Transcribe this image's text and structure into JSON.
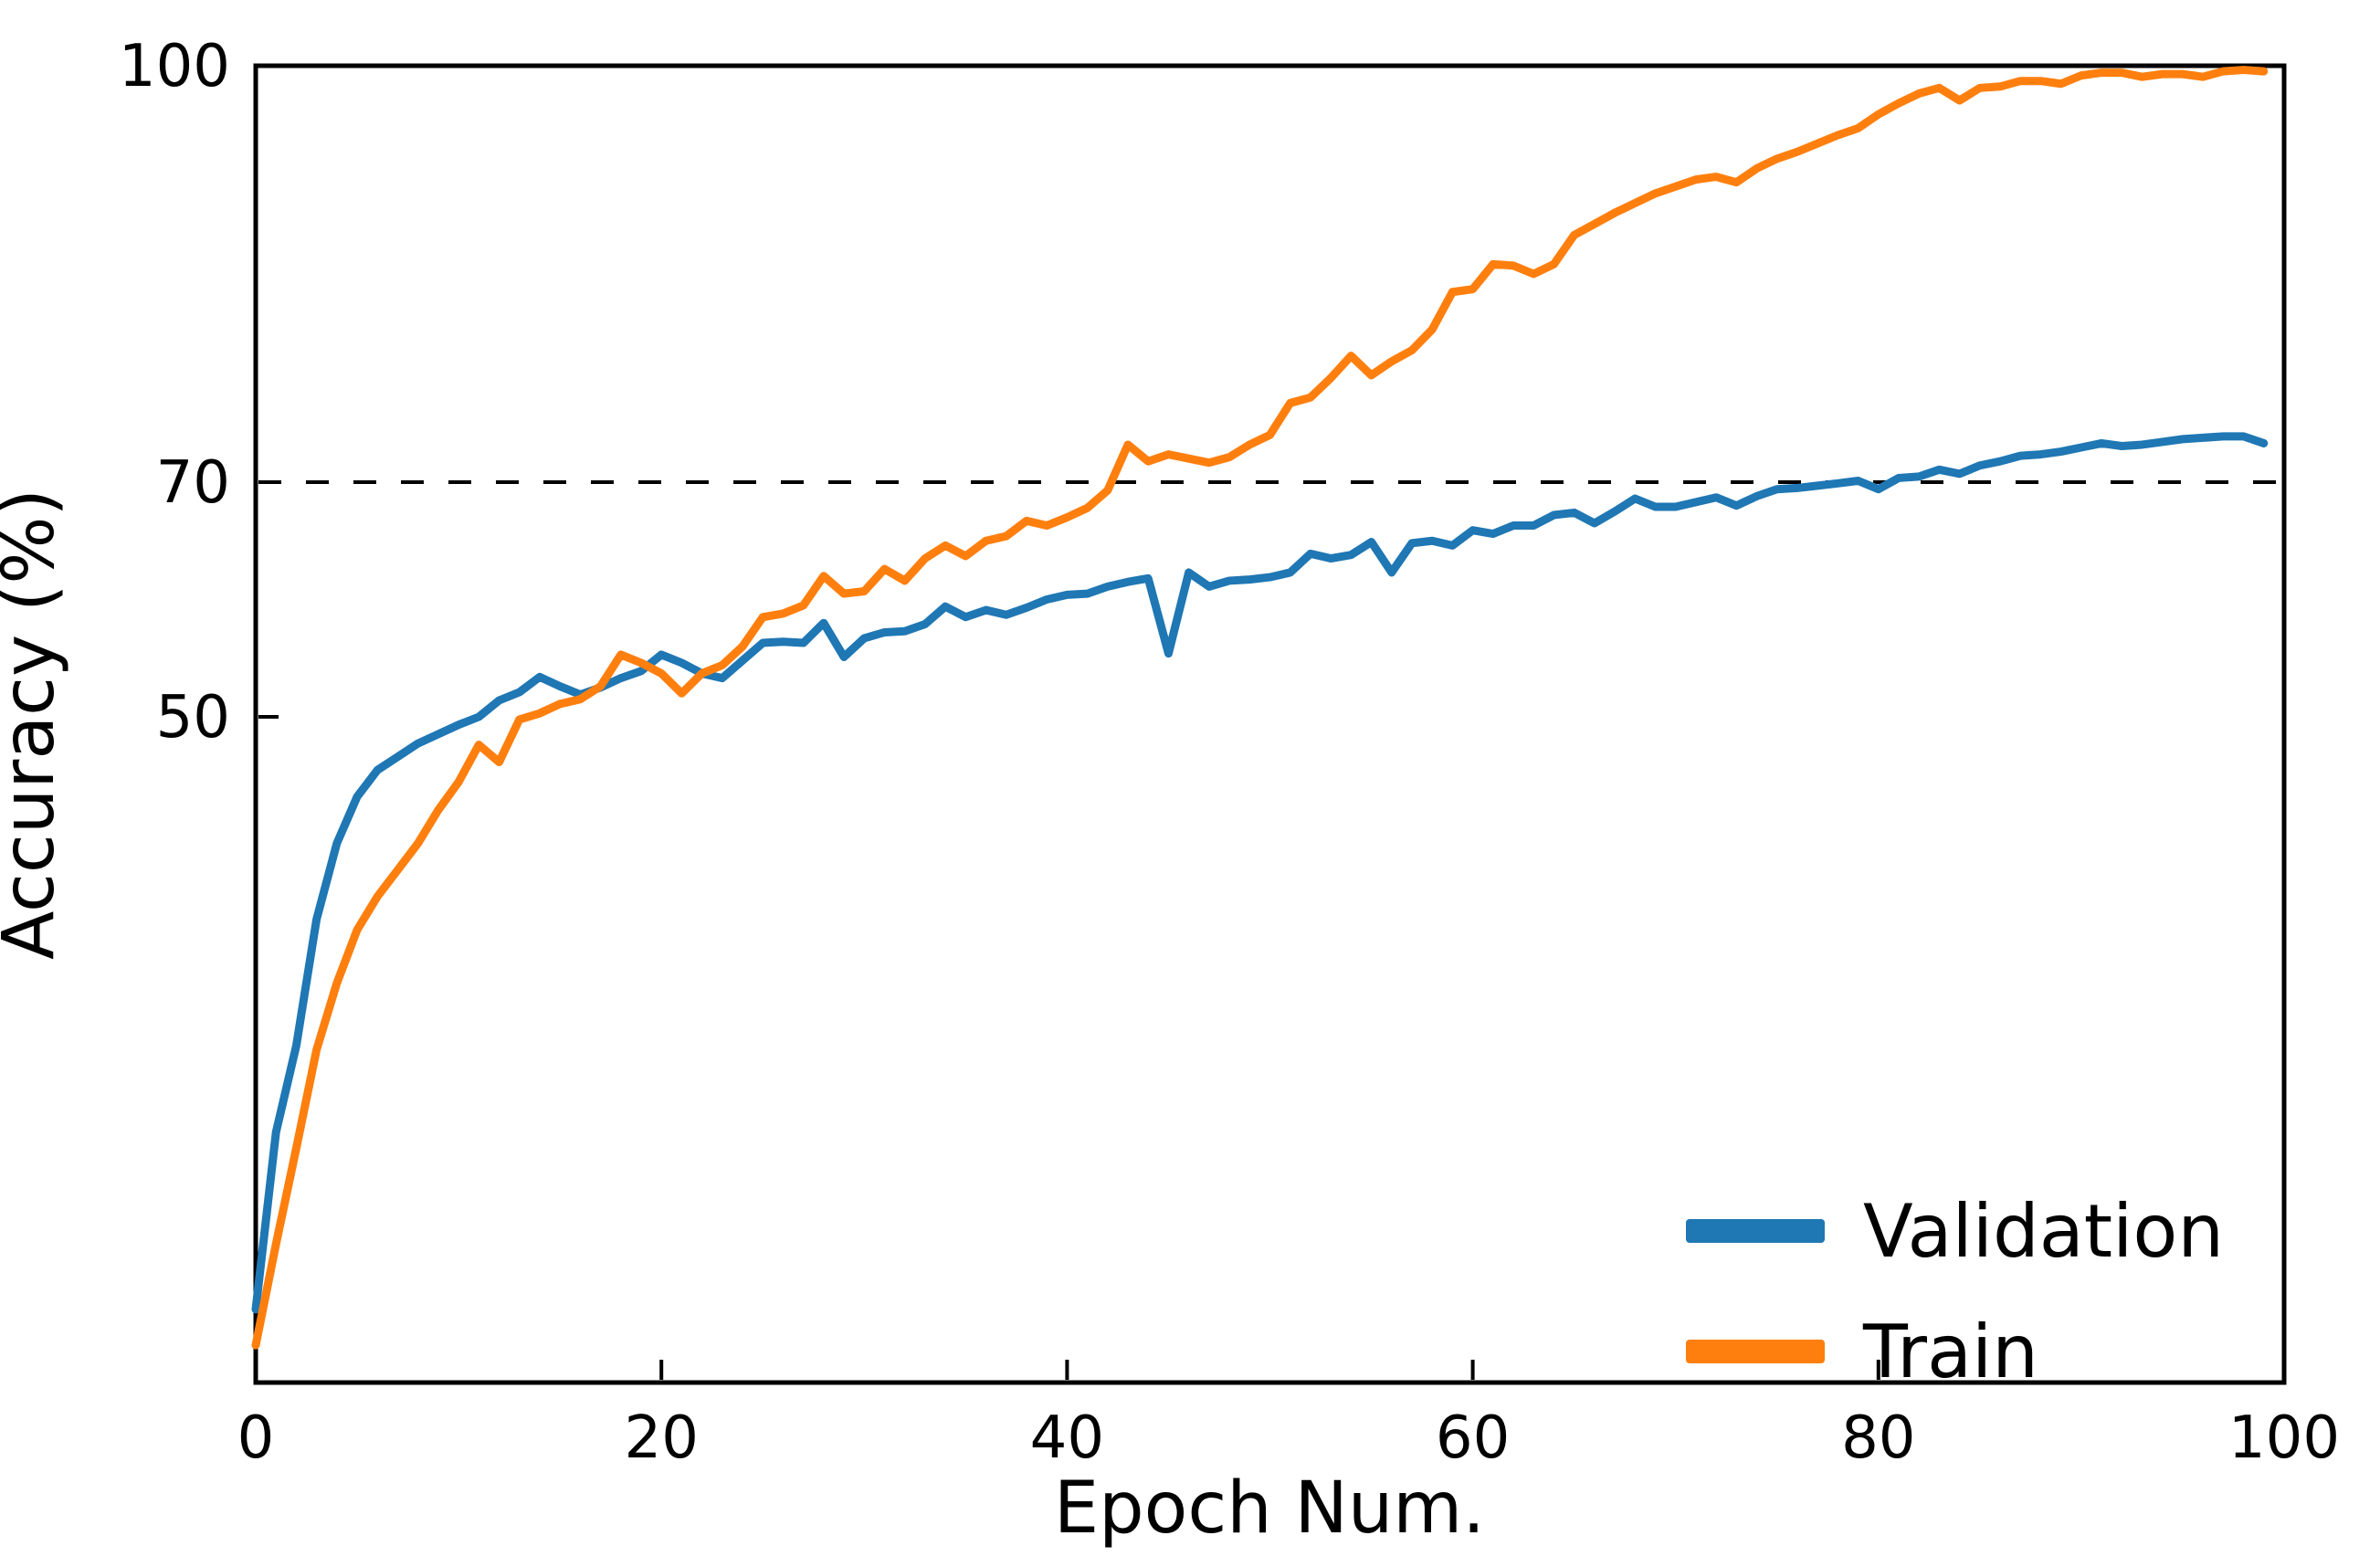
{
  "figure": {
    "y_axis": {
      "label": "Accuracy (%)",
      "tick_labels": [
        "50",
        "70",
        "100"
      ]
    },
    "x_axis": {
      "label": "Epoch Num.",
      "tick_labels": [
        "0",
        "20",
        "40",
        "60",
        "80",
        "100"
      ]
    },
    "legend": [
      {
        "label": "Validation",
        "color": "#1f77b4"
      },
      {
        "label": "Train",
        "color": "#ff7f0e"
      }
    ],
    "reference_line": {
      "value": 70,
      "style": "dashed",
      "color": "#000000"
    }
  },
  "chart_data": {
    "type": "line",
    "title": "",
    "xlabel": "Epoch Num.",
    "ylabel": "Accuracy (%)",
    "xlim": [
      0,
      100
    ],
    "xticks": [
      0,
      20,
      40,
      60,
      80,
      100
    ],
    "yticks": [
      50,
      70,
      100
    ],
    "grid": false,
    "legend_position": "lower right",
    "reference_line_y": 70,
    "x": [
      0,
      1,
      2,
      3,
      4,
      5,
      6,
      7,
      8,
      9,
      10,
      11,
      12,
      13,
      14,
      15,
      16,
      17,
      18,
      19,
      20,
      21,
      22,
      23,
      24,
      25,
      26,
      27,
      28,
      29,
      30,
      31,
      32,
      33,
      34,
      35,
      36,
      37,
      38,
      39,
      40,
      41,
      42,
      43,
      44,
      45,
      46,
      47,
      48,
      49,
      50,
      51,
      52,
      53,
      54,
      55,
      56,
      57,
      58,
      59,
      60,
      61,
      62,
      63,
      64,
      65,
      66,
      67,
      68,
      69,
      70,
      71,
      72,
      73,
      74,
      75,
      76,
      77,
      78,
      79,
      80,
      81,
      82,
      83,
      84,
      85,
      86,
      87,
      88,
      89,
      90,
      91,
      92,
      93,
      94,
      95,
      96,
      97,
      98,
      99
    ],
    "series": [
      {
        "name": "Validation",
        "color": "#1f77b4",
        "values": [
          5.5,
          18.8,
          25.3,
          34.8,
          40.5,
          44.0,
          46.0,
          47.0,
          48.0,
          48.7,
          49.4,
          50.0,
          51.4,
          52.1,
          53.4,
          52.6,
          51.9,
          52.5,
          53.3,
          53.9,
          55.3,
          54.6,
          53.7,
          53.3,
          54.8,
          56.3,
          56.4,
          56.3,
          58.0,
          55.1,
          56.7,
          57.2,
          57.3,
          57.9,
          59.4,
          58.5,
          59.1,
          58.7,
          59.3,
          60.0,
          60.4,
          60.5,
          61.1,
          61.5,
          61.8,
          55.4,
          62.3,
          61.1,
          61.6,
          61.7,
          61.9,
          62.3,
          63.9,
          63.5,
          63.8,
          64.9,
          62.3,
          64.8,
          65.0,
          64.6,
          65.9,
          65.6,
          66.3,
          66.3,
          67.2,
          67.4,
          66.5,
          67.5,
          68.6,
          67.9,
          67.9,
          68.3,
          68.7,
          68.0,
          68.8,
          69.4,
          69.5,
          69.7,
          69.9,
          70.1,
          69.4,
          70.3,
          70.4,
          70.9,
          70.6,
          71.2,
          71.5,
          71.9,
          72.0,
          72.2,
          72.5,
          72.8,
          72.6,
          72.7,
          72.9,
          73.1,
          73.2,
          73.3,
          73.3,
          72.8
        ]
      },
      {
        "name": "Train",
        "color": "#ff7f0e",
        "values": [
          2.8,
          10.4,
          17.6,
          25.0,
          30.0,
          34.0,
          36.5,
          38.5,
          40.5,
          43.0,
          45.1,
          47.9,
          46.6,
          49.8,
          50.3,
          51.1,
          51.5,
          52.6,
          55.3,
          54.6,
          53.7,
          52.0,
          53.7,
          54.4,
          56.0,
          58.5,
          58.8,
          59.5,
          62.0,
          60.5,
          60.7,
          62.6,
          61.6,
          63.5,
          64.6,
          63.7,
          65.0,
          65.4,
          66.7,
          66.3,
          67.0,
          67.8,
          69.3,
          72.7,
          71.5,
          72.0,
          71.7,
          71.4,
          71.8,
          72.7,
          73.4,
          75.7,
          76.1,
          77.5,
          79.1,
          77.7,
          78.7,
          79.5,
          81.0,
          83.7,
          83.9,
          85.7,
          85.6,
          85.0,
          85.7,
          87.8,
          88.6,
          89.4,
          90.1,
          90.8,
          91.3,
          91.8,
          92.0,
          91.6,
          92.6,
          93.3,
          93.8,
          94.4,
          95.0,
          95.5,
          96.5,
          97.3,
          98.0,
          98.4,
          97.5,
          98.4,
          98.5,
          98.9,
          98.9,
          98.7,
          99.3,
          99.5,
          99.5,
          99.2,
          99.4,
          99.4,
          99.2,
          99.6,
          99.7,
          99.6
        ]
      }
    ]
  }
}
